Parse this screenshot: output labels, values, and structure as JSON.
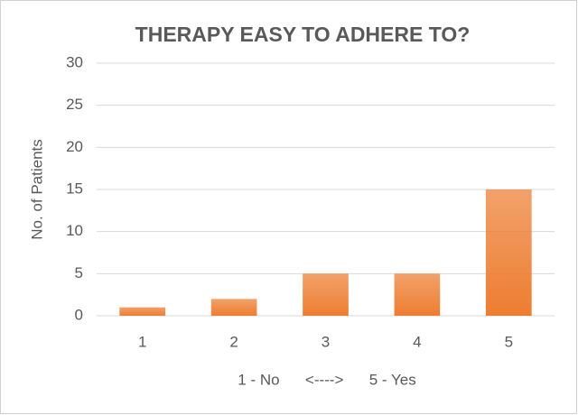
{
  "chart_data": {
    "type": "bar",
    "title": "THERAPY EASY TO ADHERE TO?",
    "y_label": "No. of Patients",
    "x_label": "1 - No      <---->      5 - Yes",
    "categories": [
      "1",
      "2",
      "3",
      "4",
      "5"
    ],
    "values": [
      1,
      2,
      5,
      5,
      15
    ],
    "color": "#ed7d31",
    "ylim": [
      0,
      30
    ],
    "yticks": [
      0,
      5,
      10,
      15,
      20,
      25,
      30
    ],
    "grid": true
  }
}
